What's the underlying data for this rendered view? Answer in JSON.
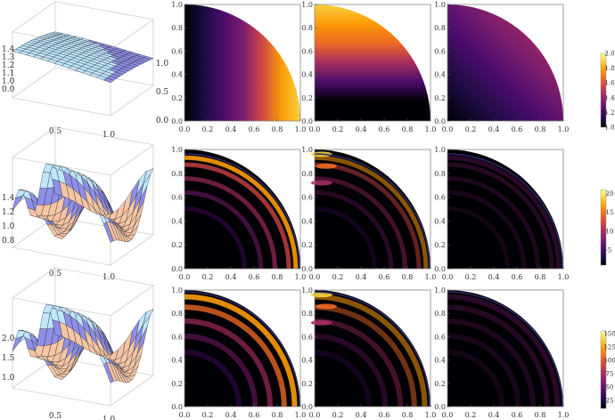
{
  "colors": {
    "inferno": [
      "#000004",
      "#1b0c41",
      "#4a0c6b",
      "#781c6d",
      "#a52c60",
      "#cf4446",
      "#ed6925",
      "#fb9b06",
      "#f7d13d",
      "#fcffa4"
    ],
    "surface_low": "#f4c6a6",
    "surface_high": "#bfe6ff",
    "surface_mid": "#8f8fe8"
  },
  "tick_labels": [
    "0.0",
    "0.2",
    "0.4",
    "0.6",
    "0.8",
    "1.0"
  ],
  "rows": [
    {
      "surface": {
        "z_ticks": [
          "1.4",
          "1.3",
          "1.2",
          "1.1",
          "1.0",
          "0.0"
        ],
        "x_ticks": [
          "0.5",
          "1.0"
        ],
        "y_ticks": [
          "1.0",
          "0.5",
          "0.0"
        ]
      },
      "colorbar": {
        "ticks": [
          "2.0",
          "1.8",
          "1.6",
          "1.4",
          "1.2",
          "1.0"
        ],
        "range": [
          1.0,
          2.0
        ]
      }
    },
    {
      "surface": {
        "z_ticks": [
          "1.4",
          "1.2",
          "1.0",
          "0.8"
        ],
        "x_ticks": [
          "0.5",
          "1.0"
        ],
        "y_ticks": []
      },
      "colorbar": {
        "ticks": [
          "20",
          "15",
          "10",
          "5"
        ],
        "range": [
          1.0,
          21.0
        ]
      }
    },
    {
      "surface": {
        "z_ticks": [
          "2.0",
          "1.5",
          "1.0"
        ],
        "x_ticks": [
          "0.5",
          "1.0"
        ],
        "y_ticks": []
      },
      "colorbar": {
        "ticks": [
          "150",
          "125",
          "100",
          "75",
          "50",
          "25"
        ],
        "range": [
          10,
          155
        ]
      }
    }
  ]
}
